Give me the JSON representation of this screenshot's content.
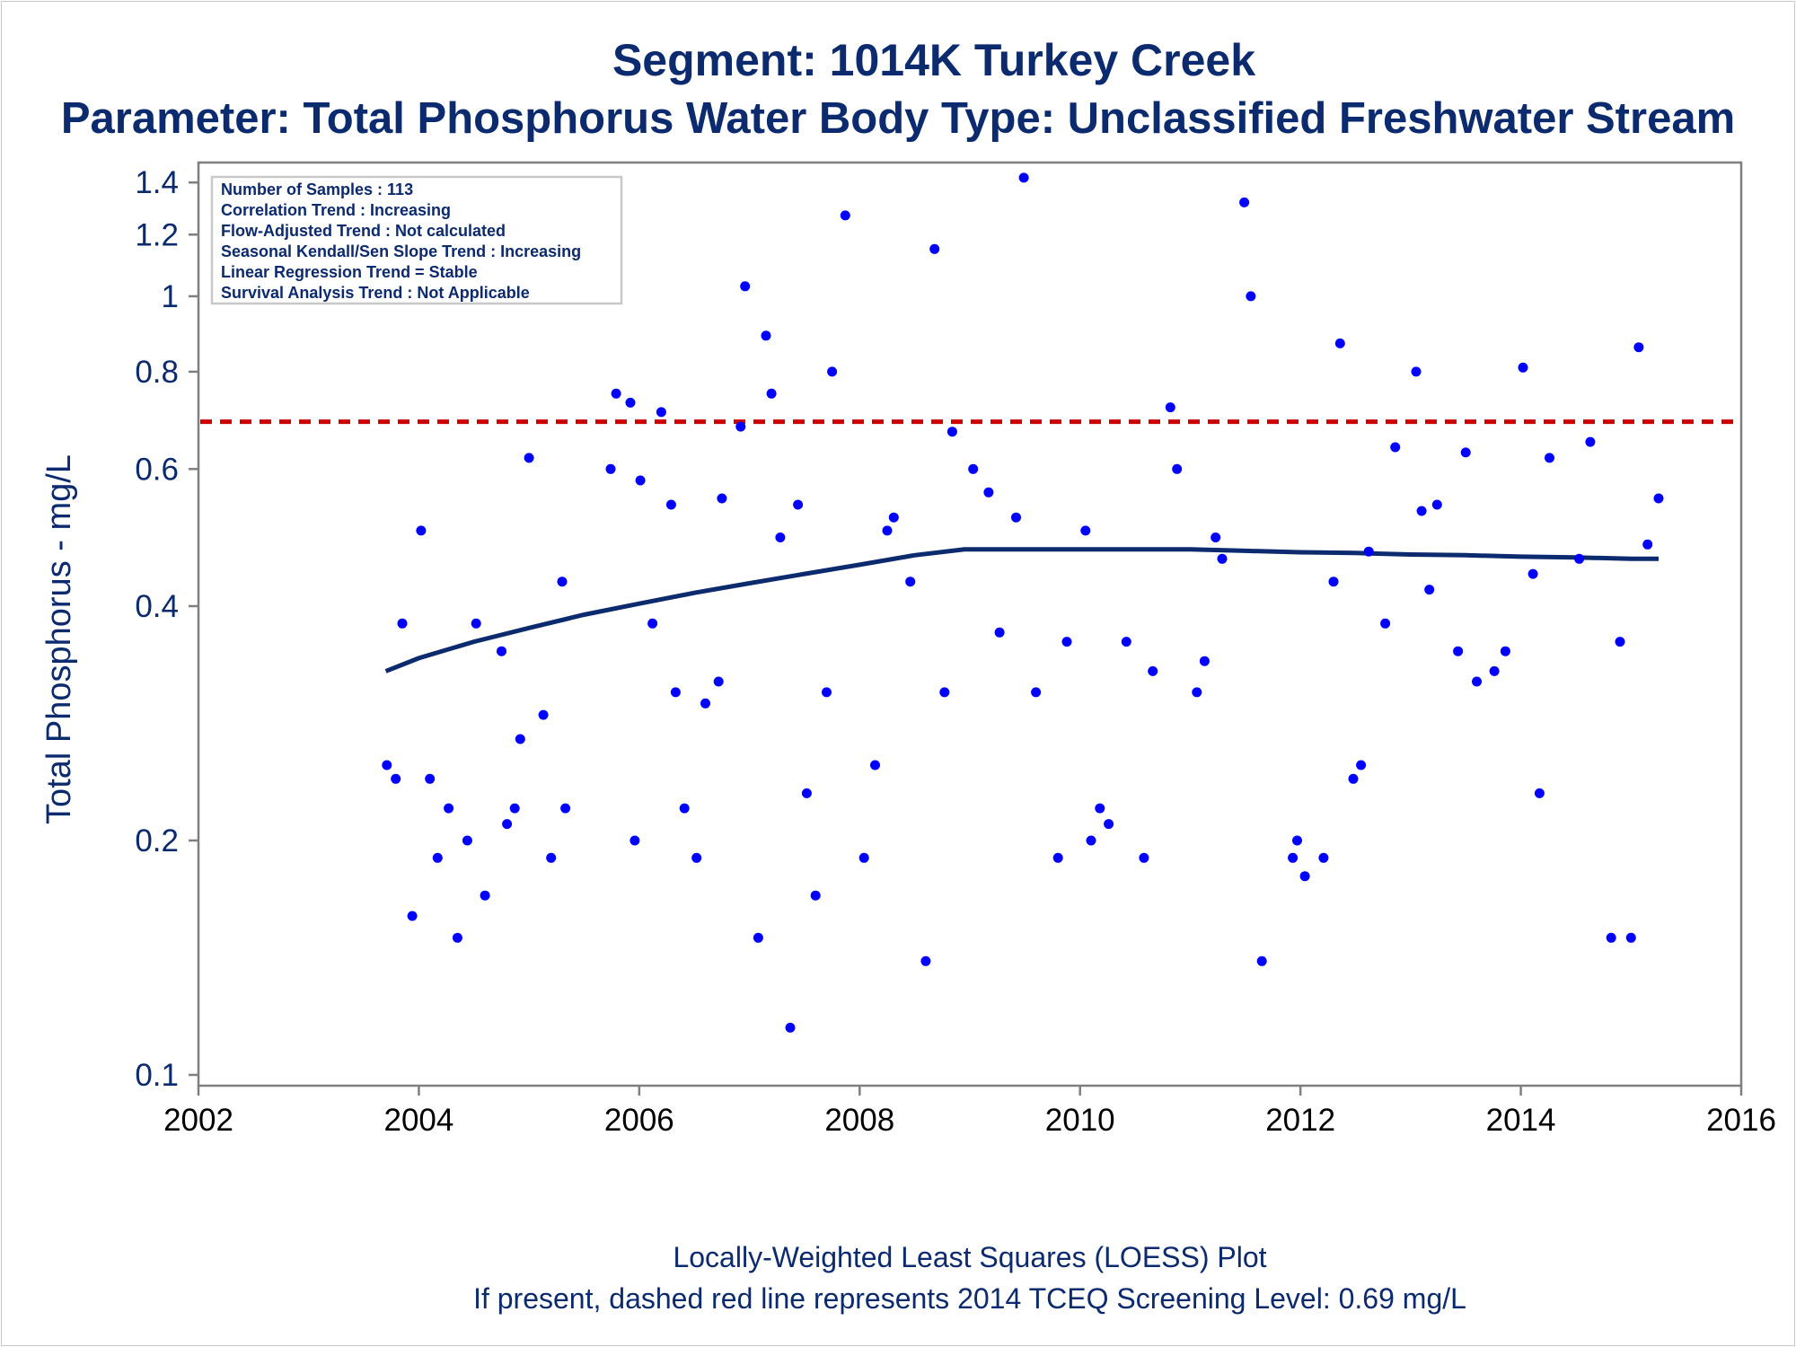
{
  "title": "Segment: 1014K  Turkey Creek",
  "subtitle": "Parameter: Total Phosphorus   Water Body Type: Unclassified Freshwater Stream",
  "footnote1": "Locally-Weighted Least Squares (LOESS) Plot",
  "footnote2": "If present, dashed red line represents 2014 TCEQ Screening Level: 0.69 mg/L",
  "info_box": [
    "Number of Samples : 113",
    "Correlation Trend : Increasing",
    "Flow-Adjusted Trend : Not calculated",
    "Seasonal Kendall/Sen Slope Trend : Increasing",
    "Linear Regression Trend = Stable",
    "Survival Analysis Trend : Not Applicable"
  ],
  "colors": {
    "text": "#0c2a6e",
    "points": "#0000ff",
    "loess": "#0c2a6e",
    "screening": "#cc0000",
    "axis": "#7f7f7f"
  },
  "chart_data": {
    "type": "scatter",
    "ylabel": "Total Phosphorus - mg/L",
    "xlabel": "",
    "yscale": "log",
    "xlim": [
      2002,
      2016
    ],
    "ylim": [
      0.1,
      1.45
    ],
    "x_ticks": [
      2002,
      2004,
      2006,
      2008,
      2010,
      2012,
      2014,
      2016
    ],
    "y_ticks": [
      0.1,
      0.2,
      0.4,
      0.6,
      0.8,
      1,
      1.2,
      1.4
    ],
    "y_tick_labels": [
      "0.1",
      "0.2",
      "0.4",
      "0.6",
      "0.8",
      "1",
      "1.2",
      "1.4"
    ],
    "screening_level": 0.69,
    "points": [
      [
        2003.71,
        0.25
      ],
      [
        2003.79,
        0.24
      ],
      [
        2003.85,
        0.38
      ],
      [
        2003.94,
        0.16
      ],
      [
        2004.02,
        0.5
      ],
      [
        2004.1,
        0.24
      ],
      [
        2004.17,
        0.19
      ],
      [
        2004.27,
        0.22
      ],
      [
        2004.35,
        0.15
      ],
      [
        2004.44,
        0.2
      ],
      [
        2004.52,
        0.38
      ],
      [
        2004.6,
        0.17
      ],
      [
        2004.75,
        0.35
      ],
      [
        2004.8,
        0.21
      ],
      [
        2004.87,
        0.22
      ],
      [
        2004.92,
        0.27
      ],
      [
        2005.0,
        0.62
      ],
      [
        2005.13,
        0.29
      ],
      [
        2005.2,
        0.19
      ],
      [
        2005.3,
        0.43
      ],
      [
        2005.33,
        0.22
      ],
      [
        2005.74,
        0.6
      ],
      [
        2005.79,
        0.75
      ],
      [
        2005.92,
        0.73
      ],
      [
        2005.96,
        0.2
      ],
      [
        2006.01,
        0.58
      ],
      [
        2006.12,
        0.38
      ],
      [
        2006.2,
        0.71
      ],
      [
        2006.29,
        0.54
      ],
      [
        2006.33,
        0.31
      ],
      [
        2006.41,
        0.22
      ],
      [
        2006.52,
        0.19
      ],
      [
        2006.6,
        0.3
      ],
      [
        2006.72,
        0.32
      ],
      [
        2006.75,
        0.55
      ],
      [
        2006.92,
        0.68
      ],
      [
        2006.96,
        1.03
      ],
      [
        2007.08,
        0.15
      ],
      [
        2007.15,
        0.89
      ],
      [
        2007.2,
        0.75
      ],
      [
        2007.28,
        0.49
      ],
      [
        2007.37,
        0.115
      ],
      [
        2007.44,
        0.54
      ],
      [
        2007.52,
        0.23
      ],
      [
        2007.6,
        0.17
      ],
      [
        2007.7,
        0.31
      ],
      [
        2007.75,
        0.8
      ],
      [
        2007.87,
        1.27
      ],
      [
        2008.04,
        0.19
      ],
      [
        2008.14,
        0.25
      ],
      [
        2008.25,
        0.5
      ],
      [
        2008.31,
        0.52
      ],
      [
        2008.46,
        0.43
      ],
      [
        2008.6,
        0.14
      ],
      [
        2008.68,
        1.15
      ],
      [
        2008.77,
        0.31
      ],
      [
        2008.84,
        0.67
      ],
      [
        2009.03,
        0.6
      ],
      [
        2009.17,
        0.56
      ],
      [
        2009.27,
        0.37
      ],
      [
        2009.42,
        0.52
      ],
      [
        2009.49,
        1.42
      ],
      [
        2009.6,
        0.31
      ],
      [
        2009.8,
        0.19
      ],
      [
        2009.88,
        0.36
      ],
      [
        2010.05,
        0.5
      ],
      [
        2010.1,
        0.2
      ],
      [
        2010.18,
        0.22
      ],
      [
        2010.26,
        0.21
      ],
      [
        2010.42,
        0.36
      ],
      [
        2010.58,
        0.19
      ],
      [
        2010.66,
        0.33
      ],
      [
        2010.82,
        0.72
      ],
      [
        2010.88,
        0.6
      ],
      [
        2011.06,
        0.31
      ],
      [
        2011.13,
        0.34
      ],
      [
        2011.23,
        0.49
      ],
      [
        2011.29,
        0.46
      ],
      [
        2011.49,
        1.32
      ],
      [
        2011.55,
        1.0
      ],
      [
        2011.65,
        0.14
      ],
      [
        2011.93,
        0.19
      ],
      [
        2011.97,
        0.2
      ],
      [
        2012.04,
        0.18
      ],
      [
        2012.21,
        0.19
      ],
      [
        2012.3,
        0.43
      ],
      [
        2012.36,
        0.87
      ],
      [
        2012.48,
        0.24
      ],
      [
        2012.55,
        0.25
      ],
      [
        2012.62,
        0.47
      ],
      [
        2012.77,
        0.38
      ],
      [
        2012.86,
        0.64
      ],
      [
        2013.05,
        0.8
      ],
      [
        2013.1,
        0.53
      ],
      [
        2013.17,
        0.42
      ],
      [
        2013.24,
        0.54
      ],
      [
        2013.43,
        0.35
      ],
      [
        2013.5,
        0.63
      ],
      [
        2013.6,
        0.32
      ],
      [
        2013.76,
        0.33
      ],
      [
        2013.86,
        0.35
      ],
      [
        2014.02,
        0.81
      ],
      [
        2014.11,
        0.44
      ],
      [
        2014.17,
        0.23
      ],
      [
        2014.26,
        0.62
      ],
      [
        2014.53,
        0.46
      ],
      [
        2014.63,
        0.65
      ],
      [
        2014.82,
        0.15
      ],
      [
        2014.9,
        0.36
      ],
      [
        2015.0,
        0.15
      ],
      [
        2015.07,
        0.86
      ],
      [
        2015.15,
        0.48
      ],
      [
        2015.25,
        0.55
      ]
    ],
    "loess": [
      [
        2003.7,
        0.33
      ],
      [
        2004.0,
        0.343
      ],
      [
        2004.5,
        0.36
      ],
      [
        2005.0,
        0.375
      ],
      [
        2005.5,
        0.39
      ],
      [
        2006.0,
        0.403
      ],
      [
        2006.5,
        0.416
      ],
      [
        2007.0,
        0.428
      ],
      [
        2007.5,
        0.44
      ],
      [
        2008.0,
        0.452
      ],
      [
        2008.5,
        0.465
      ],
      [
        2008.95,
        0.473
      ],
      [
        2009.5,
        0.473
      ],
      [
        2010.0,
        0.473
      ],
      [
        2010.5,
        0.473
      ],
      [
        2011.0,
        0.473
      ],
      [
        2011.5,
        0.471
      ],
      [
        2012.0,
        0.469
      ],
      [
        2012.5,
        0.468
      ],
      [
        2013.0,
        0.466
      ],
      [
        2013.5,
        0.465
      ],
      [
        2014.0,
        0.463
      ],
      [
        2014.5,
        0.462
      ],
      [
        2015.0,
        0.46
      ],
      [
        2015.25,
        0.46
      ]
    ]
  }
}
